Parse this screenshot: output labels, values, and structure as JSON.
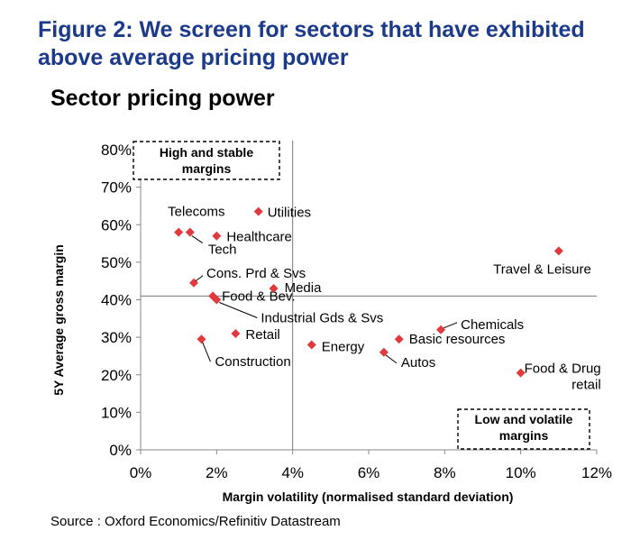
{
  "figure": {
    "title": "Figure 2: We screen for sectors that have exhibited above average pricing power",
    "source": "Source : Oxford Economics/Refinitiv Datastream"
  },
  "chart_data": {
    "type": "scatter",
    "title": "Sector pricing power",
    "xlabel": "Margin volatility (normalised standard deviation)",
    "ylabel": "5Y Average gross margin",
    "xlim": [
      0,
      12
    ],
    "ylim": [
      0,
      80
    ],
    "x_ticks": [
      "0%",
      "2%",
      "4%",
      "6%",
      "8%",
      "10%",
      "12%"
    ],
    "y_ticks": [
      "0%",
      "10%",
      "20%",
      "30%",
      "40%",
      "50%",
      "60%",
      "70%",
      "80%"
    ],
    "grid": false,
    "marker_color": "#e03a3e",
    "quadrant_lines": {
      "x": 4.0,
      "y": 41.0
    },
    "points": [
      {
        "label": "Telecoms",
        "x": 1.0,
        "y": 58.0
      },
      {
        "label": "Tech",
        "x": 1.3,
        "y": 58.0
      },
      {
        "label": "Healthcare",
        "x": 2.0,
        "y": 57.0
      },
      {
        "label": "Utilities",
        "x": 3.1,
        "y": 63.5
      },
      {
        "label": "Cons. Prd & Svs",
        "x": 1.4,
        "y": 44.5
      },
      {
        "label": "Food & Bev.",
        "x": 1.9,
        "y": 41.0
      },
      {
        "label": "Industrial Gds & Svs",
        "x": 2.0,
        "y": 40.0
      },
      {
        "label": "Media",
        "x": 3.5,
        "y": 43.0
      },
      {
        "label": "Retail",
        "x": 2.5,
        "y": 31.0
      },
      {
        "label": "Construction",
        "x": 1.6,
        "y": 29.5
      },
      {
        "label": "Energy",
        "x": 4.5,
        "y": 28.0
      },
      {
        "label": "Basic resources",
        "x": 6.8,
        "y": 29.5
      },
      {
        "label": "Chemicals",
        "x": 7.9,
        "y": 32.0
      },
      {
        "label": "Autos",
        "x": 6.4,
        "y": 26.0
      },
      {
        "label": "Food & Drug retail",
        "x": 10.0,
        "y": 20.5
      },
      {
        "label": "Travel & Leisure",
        "x": 11.0,
        "y": 53.0
      }
    ],
    "annotations": [
      {
        "text": "High and stable margins",
        "lines": [
          "High and stable",
          "margins"
        ]
      },
      {
        "text": "Low and volatile margins",
        "lines": [
          "Low and volatile",
          "margins"
        ]
      }
    ]
  }
}
